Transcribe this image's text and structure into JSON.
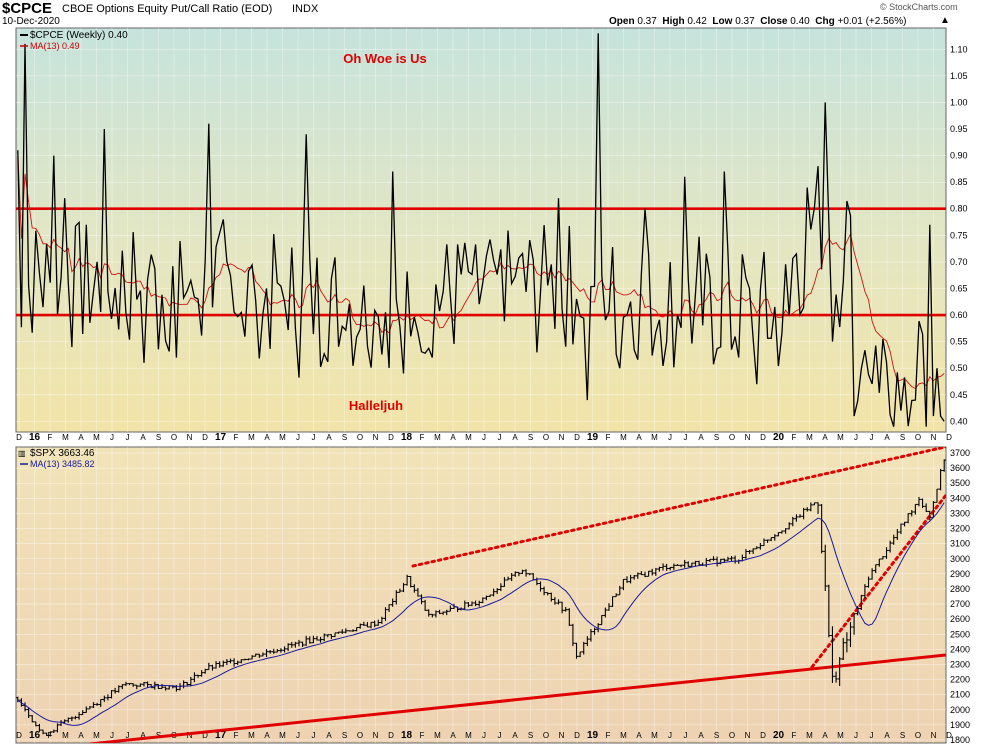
{
  "header": {
    "symbol": "$CPCE",
    "name": "CBOE Options Equity Put/Call Ratio (EOD)",
    "exchange": "INDX",
    "date": "10-Dec-2020",
    "open_label": "Open",
    "open": "0.37",
    "high_label": "High",
    "high": "0.42",
    "low_label": "Low",
    "low": "0.37",
    "close_label": "Close",
    "close": "0.40",
    "chg_label": "Chg",
    "chg": "+0.01 (+2.56%)",
    "credit": "© StockCharts.com"
  },
  "chart_data": [
    {
      "type": "line",
      "title": "$CPCE (Weekly) 0.40",
      "series": [
        {
          "name": "$CPCE (Weekly) 0.40",
          "color": "#000000"
        },
        {
          "name": "MA(13) 0.49",
          "color": "#cc0000"
        }
      ],
      "ylim": [
        0.38,
        1.14
      ],
      "yticks": [
        "1.10",
        "1.05",
        "1.00",
        "0.95",
        "0.90",
        "0.85",
        "0.80",
        "0.75",
        "0.70",
        "0.65",
        "0.60",
        "0.55",
        "0.50",
        "0.45",
        "0.40"
      ],
      "horizontal_lines": [
        0.8,
        0.6
      ],
      "annotations": [
        "Oh Woe is Us",
        "Halleljuh"
      ],
      "key_values": {
        "first_week_2016": 0.91,
        "peak_jan_2016": 1.11,
        "peak_dec_2018": 1.13,
        "peak_mar_2020": 1.0,
        "last": 0.4,
        "ma13_last": 0.49
      },
      "grid": true,
      "background": "gradient teal-to-yellow"
    },
    {
      "type": "bar",
      "title": "$SPX 3663.46",
      "series": [
        {
          "name": "$SPX 3663.46",
          "color": "#000000"
        },
        {
          "name": "MA(13) 3485.82",
          "color": "#1a1aa0"
        }
      ],
      "ylim": [
        1780,
        3740
      ],
      "yticks": [
        "3700",
        "3600",
        "3500",
        "3400",
        "3300",
        "3200",
        "3100",
        "3000",
        "2900",
        "2800",
        "2700",
        "2600",
        "2500",
        "2400",
        "2300",
        "2200",
        "2100",
        "2000",
        "1900",
        "1800"
      ],
      "key_values": {
        "start_jan_2016": 2080,
        "low_feb_2016": 1830,
        "high_jan_2018": 2870,
        "high_sep_2018": 2930,
        "low_dec_2018": 2350,
        "high_feb_2020": 3390,
        "low_mar_2020": 2190,
        "last": 3663.46
      },
      "trendlines": [
        "dotted upper channel line",
        "solid lower support line",
        "dotted line from 2020 low"
      ],
      "grid": true,
      "background": "gradient tan"
    }
  ],
  "x_axis": {
    "labels": [
      "D",
      "16",
      "F",
      "M",
      "A",
      "M",
      "J",
      "J",
      "A",
      "S",
      "O",
      "N",
      "D",
      "17",
      "F",
      "M",
      "A",
      "M",
      "J",
      "J",
      "A",
      "S",
      "O",
      "N",
      "D",
      "18",
      "F",
      "M",
      "A",
      "M",
      "J",
      "J",
      "A",
      "S",
      "O",
      "N",
      "D",
      "19",
      "F",
      "M",
      "A",
      "M",
      "J",
      "J",
      "A",
      "S",
      "O",
      "N",
      "D",
      "20",
      "F",
      "M",
      "A",
      "M",
      "J",
      "J",
      "A",
      "S",
      "O",
      "N",
      "D"
    ]
  }
}
